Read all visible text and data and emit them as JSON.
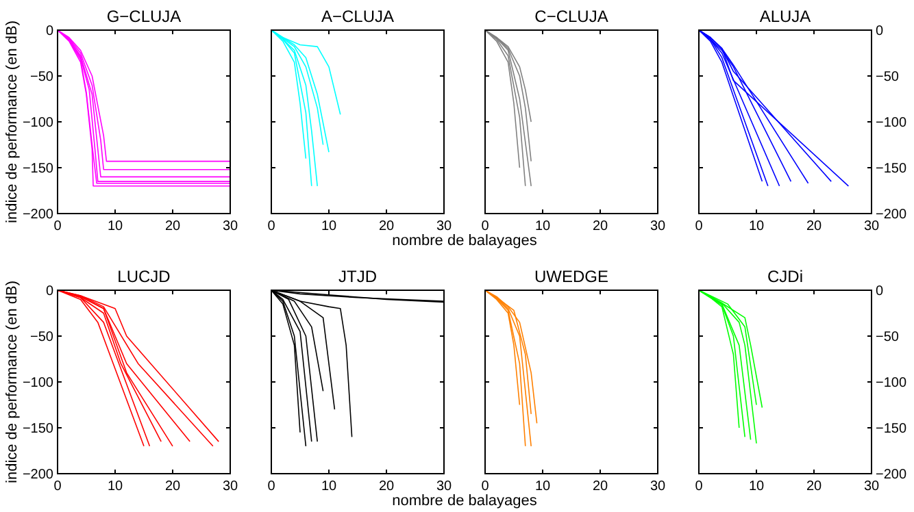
{
  "chart_data": [
    {
      "type": "line",
      "title": "G−CLUJA",
      "ylabel": "indice de performance (en dB)",
      "xlim": [
        0,
        30
      ],
      "ylim": [
        -200,
        0
      ],
      "xticks": [
        0,
        10,
        20,
        30
      ],
      "yticks": [
        -200,
        -150,
        -100,
        -50,
        0
      ],
      "series": [
        {
          "color": "#ff00ff",
          "x": [
            0,
            2,
            4,
            5,
            6,
            6.2,
            30
          ],
          "values": [
            0,
            -12,
            -35,
            -70,
            -130,
            -170,
            -170
          ]
        },
        {
          "color": "#ff00ff",
          "x": [
            0,
            2,
            4,
            5.5,
            6.5,
            7,
            30
          ],
          "values": [
            0,
            -10,
            -30,
            -65,
            -130,
            -165,
            -165
          ]
        },
        {
          "color": "#ff00ff",
          "x": [
            0,
            2,
            4,
            6,
            7,
            7.5,
            30
          ],
          "values": [
            0,
            -10,
            -28,
            -70,
            -130,
            -160,
            -160
          ]
        },
        {
          "color": "#ff00ff",
          "x": [
            0,
            2,
            4,
            6,
            7.5,
            8,
            30
          ],
          "values": [
            0,
            -9,
            -25,
            -60,
            -120,
            -152,
            -152
          ]
        },
        {
          "color": "#ff00ff",
          "x": [
            0,
            2,
            4,
            6,
            8,
            8.5,
            30
          ],
          "values": [
            0,
            -8,
            -22,
            -50,
            -115,
            -143,
            -143
          ]
        },
        {
          "color": "#ff00ff",
          "x": [
            0,
            2,
            4,
            5,
            6,
            6.8,
            30
          ],
          "values": [
            0,
            -11,
            -32,
            -68,
            -125,
            -167,
            -167
          ]
        }
      ]
    },
    {
      "type": "line",
      "title": "A−CLUJA",
      "xlabel": "nombre de balayages",
      "xlim": [
        0,
        30
      ],
      "ylim": [
        -200,
        0
      ],
      "xticks": [
        0,
        10,
        20,
        30
      ],
      "yticks": [
        -200,
        -150,
        -100,
        -50,
        0
      ],
      "tick_labels": "x",
      "series": [
        {
          "color": "#00ffff",
          "x": [
            0,
            2,
            4,
            6,
            7
          ],
          "values": [
            0,
            -10,
            -25,
            -90,
            -170
          ]
        },
        {
          "color": "#00ffff",
          "x": [
            0,
            2,
            4,
            6,
            7,
            8
          ],
          "values": [
            0,
            -10,
            -22,
            -60,
            -110,
            -170
          ]
        },
        {
          "color": "#00ffff",
          "x": [
            0,
            2,
            4,
            5,
            6
          ],
          "values": [
            0,
            -12,
            -35,
            -80,
            -140
          ]
        },
        {
          "color": "#00ffff",
          "x": [
            0,
            2,
            4,
            6,
            8,
            9
          ],
          "values": [
            0,
            -9,
            -18,
            -40,
            -85,
            -125
          ]
        },
        {
          "color": "#00ffff",
          "x": [
            0,
            2,
            4,
            6,
            8,
            10
          ],
          "values": [
            0,
            -8,
            -16,
            -30,
            -70,
            -133
          ]
        },
        {
          "color": "#00ffff",
          "x": [
            0,
            2,
            5,
            8,
            10,
            12
          ],
          "values": [
            0,
            -8,
            -16,
            -18,
            -40,
            -92
          ]
        }
      ]
    },
    {
      "type": "line",
      "title": "C−CLUJA",
      "xlim": [
        0,
        30
      ],
      "ylim": [
        -200,
        0
      ],
      "xticks": [
        0,
        10,
        20,
        30
      ],
      "yticks": [
        -200,
        -150,
        -100,
        -50,
        0
      ],
      "tick_labels": "x",
      "series": [
        {
          "color": "#808080",
          "x": [
            0,
            2,
            4,
            6,
            7
          ],
          "values": [
            0,
            -10,
            -28,
            -95,
            -170
          ]
        },
        {
          "color": "#808080",
          "x": [
            0,
            2,
            4,
            5,
            6
          ],
          "values": [
            0,
            -12,
            -35,
            -80,
            -150
          ]
        },
        {
          "color": "#808080",
          "x": [
            0,
            2,
            4,
            6,
            8
          ],
          "values": [
            0,
            -9,
            -22,
            -75,
            -170
          ]
        },
        {
          "color": "#808080",
          "x": [
            0,
            2,
            4,
            6,
            7,
            8
          ],
          "values": [
            0,
            -8,
            -20,
            -50,
            -85,
            -143
          ]
        },
        {
          "color": "#808080",
          "x": [
            0,
            2,
            4,
            6,
            7,
            8
          ],
          "values": [
            0,
            -8,
            -18,
            -40,
            -65,
            -100
          ]
        }
      ]
    },
    {
      "type": "line",
      "title": "ALUJA",
      "xlim": [
        0,
        30
      ],
      "ylim": [
        -200,
        0
      ],
      "xticks": [
        0,
        10,
        20,
        30
      ],
      "yticks": [
        -200,
        -150,
        -100,
        -50,
        0
      ],
      "series": [
        {
          "color": "#0000ff",
          "x": [
            0,
            2,
            4,
            11
          ],
          "values": [
            0,
            -12,
            -35,
            -165
          ]
        },
        {
          "color": "#0000ff",
          "x": [
            0,
            2,
            4,
            12
          ],
          "values": [
            0,
            -10,
            -30,
            -170
          ]
        },
        {
          "color": "#0000ff",
          "x": [
            0,
            2,
            4,
            14
          ],
          "values": [
            0,
            -10,
            -25,
            -170
          ]
        },
        {
          "color": "#0000ff",
          "x": [
            0,
            2,
            4,
            6,
            16
          ],
          "values": [
            0,
            -10,
            -22,
            -40,
            -165
          ]
        },
        {
          "color": "#0000ff",
          "x": [
            0,
            2,
            4,
            6,
            19
          ],
          "values": [
            0,
            -8,
            -20,
            -38,
            -167
          ]
        },
        {
          "color": "#0000ff",
          "x": [
            0,
            2,
            4,
            6,
            23
          ],
          "values": [
            0,
            -8,
            -20,
            -45,
            -165
          ]
        },
        {
          "color": "#0000ff",
          "x": [
            0,
            2,
            4,
            6,
            26
          ],
          "values": [
            0,
            -8,
            -20,
            -55,
            -170
          ]
        }
      ]
    },
    {
      "type": "line",
      "title": "LUCJD",
      "ylabel": "indice de performance (en dB)",
      "xlim": [
        0,
        30
      ],
      "ylim": [
        -200,
        0
      ],
      "xticks": [
        0,
        10,
        20,
        30
      ],
      "yticks": [
        -200,
        -150,
        -100,
        -50,
        0
      ],
      "series": [
        {
          "color": "#ff0000",
          "x": [
            0,
            4,
            7,
            15
          ],
          "values": [
            0,
            -10,
            -35,
            -170
          ]
        },
        {
          "color": "#ff0000",
          "x": [
            0,
            4,
            8,
            16
          ],
          "values": [
            0,
            -8,
            -35,
            -170
          ]
        },
        {
          "color": "#ff0000",
          "x": [
            0,
            4,
            8,
            11,
            18
          ],
          "values": [
            0,
            -8,
            -25,
            -80,
            -165
          ]
        },
        {
          "color": "#ff0000",
          "x": [
            0,
            4,
            8,
            12,
            20
          ],
          "values": [
            0,
            -7,
            -20,
            -90,
            -170
          ]
        },
        {
          "color": "#ff0000",
          "x": [
            0,
            4,
            8,
            12,
            23
          ],
          "values": [
            0,
            -7,
            -20,
            -80,
            -165
          ]
        },
        {
          "color": "#ff0000",
          "x": [
            0,
            4,
            8,
            14,
            27
          ],
          "values": [
            0,
            -6,
            -18,
            -80,
            -170
          ]
        },
        {
          "color": "#ff0000",
          "x": [
            0,
            4,
            10,
            12,
            28
          ],
          "values": [
            0,
            -6,
            -20,
            -50,
            -165
          ]
        }
      ]
    },
    {
      "type": "line",
      "title": "JTJD",
      "xlabel": "nombre de balayages",
      "xlim": [
        0,
        30
      ],
      "ylim": [
        -200,
        0
      ],
      "xticks": [
        0,
        10,
        20,
        30
      ],
      "yticks": [
        -200,
        -150,
        -100,
        -50,
        0
      ],
      "tick_labels": "x",
      "series": [
        {
          "color": "#000000",
          "x": [
            0,
            10,
            20,
            30
          ],
          "values": [
            0,
            -5,
            -10,
            -13
          ]
        },
        {
          "color": "#000000",
          "x": [
            0,
            5,
            15,
            22,
            30
          ],
          "values": [
            0,
            -4,
            -8,
            -10,
            -12
          ]
        },
        {
          "color": "#000000",
          "x": [
            0,
            2,
            4,
            5
          ],
          "values": [
            0,
            -15,
            -60,
            -155
          ]
        },
        {
          "color": "#000000",
          "x": [
            0,
            2,
            4,
            6
          ],
          "values": [
            0,
            -12,
            -50,
            -170
          ]
        },
        {
          "color": "#000000",
          "x": [
            0,
            2,
            5,
            7
          ],
          "values": [
            0,
            -10,
            -45,
            -165
          ]
        },
        {
          "color": "#000000",
          "x": [
            0,
            3,
            6,
            8
          ],
          "values": [
            0,
            -10,
            -50,
            -165
          ]
        },
        {
          "color": "#000000",
          "x": [
            0,
            4,
            7,
            9
          ],
          "values": [
            0,
            -12,
            -40,
            -110
          ]
        },
        {
          "color": "#000000",
          "x": [
            0,
            5,
            9,
            11
          ],
          "values": [
            0,
            -12,
            -30,
            -130
          ]
        },
        {
          "color": "#000000",
          "x": [
            0,
            5,
            10,
            12,
            13,
            14
          ],
          "values": [
            0,
            -12,
            -18,
            -20,
            -60,
            -160
          ]
        }
      ]
    },
    {
      "type": "line",
      "title": "UWEDGE",
      "xlim": [
        0,
        30
      ],
      "ylim": [
        -200,
        0
      ],
      "xticks": [
        0,
        10,
        20,
        30
      ],
      "yticks": [
        -200,
        -150,
        -100,
        -50,
        0
      ],
      "tick_labels": "x",
      "series": [
        {
          "color": "#ff8000",
          "x": [
            0,
            2,
            4,
            5,
            6
          ],
          "values": [
            0,
            -10,
            -25,
            -60,
            -125
          ]
        },
        {
          "color": "#ff8000",
          "x": [
            0,
            2,
            4,
            6,
            7
          ],
          "values": [
            0,
            -9,
            -22,
            -80,
            -170
          ]
        },
        {
          "color": "#ff8000",
          "x": [
            0,
            2,
            4,
            6,
            8
          ],
          "values": [
            0,
            -8,
            -20,
            -50,
            -170
          ]
        },
        {
          "color": "#ff8000",
          "x": [
            0,
            2,
            4,
            6,
            8,
            9
          ],
          "values": [
            0,
            -7,
            -18,
            -35,
            -90,
            -145
          ]
        },
        {
          "color": "#ff8000",
          "x": [
            0,
            2,
            5,
            7,
            8
          ],
          "values": [
            0,
            -8,
            -22,
            -70,
            -135
          ]
        }
      ]
    },
    {
      "type": "line",
      "title": "CJDi",
      "xlim": [
        0,
        30
      ],
      "ylim": [
        -200,
        0
      ],
      "xticks": [
        0,
        10,
        20,
        30
      ],
      "yticks": [
        -200,
        -150,
        -100,
        -50,
        0
      ],
      "series": [
        {
          "color": "#00ff00",
          "x": [
            0,
            2,
            4,
            6,
            7
          ],
          "values": [
            0,
            -8,
            -18,
            -70,
            -150
          ]
        },
        {
          "color": "#00ff00",
          "x": [
            0,
            2,
            4,
            6,
            8
          ],
          "values": [
            0,
            -8,
            -16,
            -50,
            -160
          ]
        },
        {
          "color": "#00ff00",
          "x": [
            0,
            2,
            4,
            7,
            9
          ],
          "values": [
            0,
            -7,
            -15,
            -60,
            -163
          ]
        },
        {
          "color": "#00ff00",
          "x": [
            0,
            2,
            4,
            7,
            8,
            10
          ],
          "values": [
            0,
            -7,
            -14,
            -35,
            -60,
            -167
          ]
        },
        {
          "color": "#00ff00",
          "x": [
            0,
            2,
            4,
            8,
            9,
            11
          ],
          "values": [
            0,
            -7,
            -14,
            -30,
            -60,
            -128
          ]
        },
        {
          "color": "#00ff00",
          "x": [
            0,
            2,
            5,
            8,
            10
          ],
          "values": [
            0,
            -6,
            -15,
            -40,
            -125
          ]
        }
      ]
    }
  ]
}
